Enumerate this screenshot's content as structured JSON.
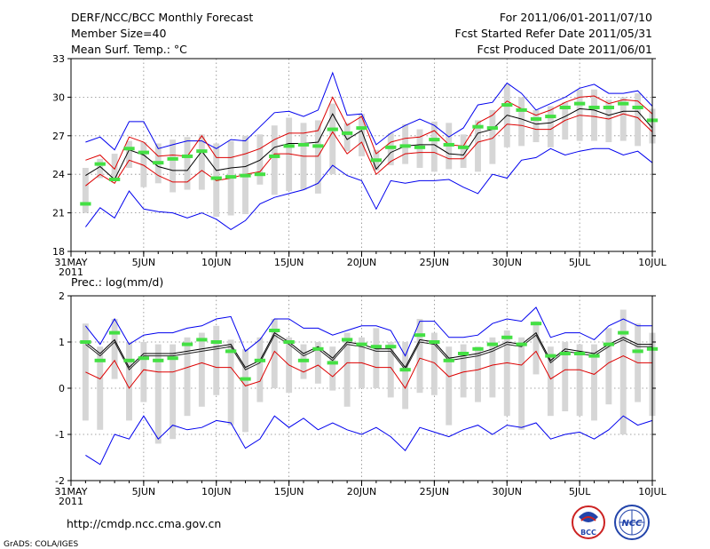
{
  "header": {
    "title": "DERF/NCC/BCC Monthly Forecast",
    "member_size": "Member Size=40",
    "variable": "Mean Surf. Temp.: °C",
    "period": "For 2011/06/01-2011/07/10",
    "start_date": "Fcst Started Refer Date 2011/05/31",
    "produced_date": "Fcst Produced Date 2011/06/01"
  },
  "footer": {
    "url": "http://cmdp.ncc.cma.gov.cn",
    "grads": "GrADS: COLA/IGES",
    "logo_bcc": "BCC",
    "logo_ncc": "NCC"
  },
  "colors": {
    "box": "#d6d6d6",
    "median": "#44e044",
    "mean": "#000000",
    "spread": "#dd0000",
    "minmax": "#0000ee",
    "grid": "#888888"
  },
  "chart_data": [
    {
      "type": "box-line",
      "title": "Mean Surf. Temp.: °C",
      "xlabel": "",
      "ylabel": "°C",
      "ylim": [
        18,
        33
      ],
      "yticks": [
        18,
        21,
        24,
        27,
        30,
        33
      ],
      "xticks": [
        {
          "day": 0,
          "label": "31MAY",
          "sub": "2011"
        },
        {
          "day": 5,
          "label": "5JUN"
        },
        {
          "day": 10,
          "label": "10JUN"
        },
        {
          "day": 15,
          "label": "15JUN"
        },
        {
          "day": 20,
          "label": "20JUN"
        },
        {
          "day": 25,
          "label": "25JUN"
        },
        {
          "day": 30,
          "label": "30JUN"
        },
        {
          "day": 35,
          "label": "5JUL"
        },
        {
          "day": 40,
          "label": "10JUL"
        }
      ],
      "x_range": [
        0,
        40
      ],
      "days": [
        1,
        2,
        3,
        4,
        5,
        6,
        7,
        8,
        9,
        10,
        11,
        12,
        13,
        14,
        15,
        16,
        17,
        18,
        19,
        20,
        21,
        22,
        23,
        24,
        25,
        26,
        27,
        28,
        29,
        30,
        31,
        32,
        33,
        34,
        35,
        36,
        37,
        38,
        39,
        40
      ],
      "box_low": [
        21.0,
        23.7,
        23.6,
        24.5,
        23.0,
        23.3,
        22.6,
        22.8,
        22.8,
        20.7,
        20.8,
        20.9,
        23.2,
        22.4,
        22.7,
        22.8,
        22.5,
        24.0,
        25.8,
        25.4,
        24.3,
        24.7,
        24.8,
        24.5,
        24.2,
        24.4,
        24.5,
        24.2,
        24.8,
        26.1,
        26.2,
        26.5,
        26.1,
        26.7,
        26.6,
        26.6,
        26.5,
        26.6,
        26.2,
        26.4
      ],
      "box_high": [
        24.5,
        25.2,
        25.6,
        26.6,
        26.5,
        26.4,
        26.7,
        26.9,
        27.1,
        26.4,
        26.6,
        27.0,
        27.1,
        27.8,
        28.4,
        28.0,
        28.2,
        29.5,
        28.0,
        28.7,
        25.9,
        27.2,
        27.9,
        27.5,
        28.1,
        28.0,
        27.1,
        28.2,
        29.0,
        31.0,
        30.0,
        29.0,
        29.3,
        29.6,
        30.6,
        30.6,
        29.8,
        30.0,
        30.3,
        29.1
      ],
      "median": [
        21.7,
        24.8,
        23.6,
        26.0,
        25.7,
        24.9,
        25.2,
        25.4,
        25.8,
        23.7,
        23.8,
        23.9,
        24.0,
        25.4,
        26.2,
        26.3,
        26.2,
        27.5,
        27.2,
        27.6,
        25.1,
        26.1,
        26.2,
        26.1,
        26.7,
        26.3,
        26.1,
        27.7,
        27.6,
        29.4,
        29.0,
        28.3,
        28.5,
        29.2,
        29.5,
        29.2,
        29.2,
        29.5,
        29.2,
        28.2
      ],
      "series": [
        {
          "name": "Max",
          "color": "#0000ee",
          "values": [
            26.5,
            26.9,
            25.9,
            28.1,
            28.1,
            26.0,
            26.3,
            26.6,
            26.6,
            26.0,
            26.7,
            26.6,
            27.7,
            28.8,
            28.9,
            28.5,
            29.0,
            31.9,
            28.6,
            28.7,
            26.3,
            27.2,
            27.8,
            28.3,
            27.8,
            26.9,
            27.6,
            29.4,
            29.6,
            31.1,
            30.3,
            29.0,
            29.5,
            30.0,
            30.7,
            31.0,
            30.3,
            30.3,
            30.5,
            29.3
          ]
        },
        {
          "name": "Mean+SD",
          "color": "#dd0000",
          "values": [
            25.1,
            25.5,
            24.4,
            26.9,
            26.5,
            25.4,
            25.5,
            25.4,
            27.0,
            25.3,
            25.3,
            25.6,
            26.0,
            26.7,
            27.2,
            27.2,
            27.4,
            30.0,
            27.8,
            28.5,
            25.6,
            26.5,
            26.8,
            26.9,
            27.4,
            26.3,
            26.2,
            28.0,
            28.6,
            29.7,
            29.1,
            28.6,
            29.0,
            29.6,
            30.0,
            30.1,
            29.5,
            29.8,
            29.7,
            28.7
          ]
        },
        {
          "name": "Mean",
          "color": "#000000",
          "values": [
            23.9,
            24.6,
            23.6,
            25.9,
            25.5,
            24.6,
            24.3,
            24.3,
            25.8,
            24.3,
            24.5,
            24.6,
            25.1,
            26.1,
            26.4,
            26.4,
            26.5,
            28.7,
            26.7,
            27.4,
            24.4,
            25.7,
            26.2,
            26.3,
            26.3,
            25.6,
            25.5,
            27.2,
            27.5,
            28.6,
            28.3,
            27.9,
            28.0,
            28.5,
            29.1,
            29.0,
            28.6,
            28.9,
            28.9,
            27.6
          ]
        },
        {
          "name": "Mean-SD",
          "color": "#dd0000",
          "values": [
            23.1,
            24.0,
            23.3,
            25.1,
            24.7,
            23.9,
            23.4,
            23.4,
            24.3,
            23.5,
            23.7,
            24.0,
            24.2,
            25.6,
            25.6,
            25.4,
            25.4,
            27.3,
            25.6,
            26.5,
            24.0,
            25.0,
            25.6,
            25.7,
            25.7,
            25.2,
            25.2,
            26.5,
            26.8,
            27.9,
            27.8,
            27.5,
            27.5,
            28.2,
            28.6,
            28.5,
            28.3,
            28.7,
            28.4,
            27.3
          ]
        },
        {
          "name": "Min",
          "color": "#0000ee",
          "values": [
            19.9,
            21.4,
            20.6,
            22.7,
            21.3,
            21.1,
            21.0,
            20.6,
            21.0,
            20.5,
            19.7,
            20.4,
            21.7,
            22.2,
            22.5,
            22.8,
            23.3,
            24.7,
            23.9,
            23.5,
            21.3,
            23.5,
            23.3,
            23.5,
            23.5,
            23.6,
            23.0,
            22.5,
            24.0,
            23.7,
            25.1,
            25.3,
            26.0,
            25.5,
            25.8,
            26.0,
            26.0,
            25.5,
            25.8,
            24.9
          ]
        }
      ]
    },
    {
      "type": "box-line",
      "title": "Prec.: log(mm/d)",
      "xlabel": "",
      "ylabel": "log(mm/d)",
      "ylim": [
        -2,
        2
      ],
      "yticks": [
        -2,
        -1,
        0,
        1,
        2
      ],
      "xticks": [
        {
          "day": 0,
          "label": "31MAY",
          "sub": "2011"
        },
        {
          "day": 5,
          "label": "5JUN"
        },
        {
          "day": 10,
          "label": "10JUN"
        },
        {
          "day": 15,
          "label": "15JUN"
        },
        {
          "day": 20,
          "label": "20JUN"
        },
        {
          "day": 25,
          "label": "25JUN"
        },
        {
          "day": 30,
          "label": "30JUN"
        },
        {
          "day": 35,
          "label": "5JUL"
        },
        {
          "day": 40,
          "label": "10JUL"
        }
      ],
      "x_range": [
        0,
        40
      ],
      "days": [
        1,
        2,
        3,
        4,
        5,
        6,
        7,
        8,
        9,
        10,
        11,
        12,
        13,
        14,
        15,
        16,
        17,
        18,
        19,
        20,
        21,
        22,
        23,
        24,
        25,
        26,
        27,
        28,
        29,
        30,
        31,
        32,
        33,
        34,
        35,
        36,
        37,
        38,
        39,
        40
      ],
      "box_low": [
        -0.7,
        -0.9,
        0.2,
        -0.7,
        -0.3,
        -1.2,
        -1.1,
        -0.6,
        -0.4,
        -0.15,
        -0.8,
        -0.95,
        -0.3,
        0.0,
        -0.1,
        0.2,
        0.1,
        -0.05,
        -0.4,
        0.0,
        0.0,
        -0.2,
        -0.45,
        -0.1,
        -0.15,
        -0.8,
        -0.2,
        -0.3,
        -0.2,
        -0.6,
        -0.9,
        0.3,
        -0.6,
        -0.5,
        -0.6,
        -0.7,
        -0.35,
        -1.0,
        -0.3,
        -0.6
      ],
      "box_high": [
        1.4,
        0.9,
        1.5,
        1.0,
        1.0,
        0.95,
        0.95,
        1.1,
        1.2,
        1.35,
        1.05,
        0.85,
        1.1,
        1.5,
        1.1,
        0.95,
        1.0,
        0.9,
        1.2,
        1.1,
        1.3,
        1.0,
        1.0,
        1.5,
        1.2,
        0.9,
        0.95,
        0.9,
        1.1,
        1.25,
        1.1,
        1.45,
        0.9,
        1.0,
        0.95,
        0.95,
        1.3,
        1.7,
        1.4,
        1.2
      ],
      "median": [
        1.0,
        0.6,
        1.2,
        0.6,
        0.65,
        0.6,
        0.65,
        0.95,
        1.05,
        1.0,
        0.8,
        0.2,
        0.6,
        1.25,
        1.0,
        0.6,
        0.85,
        0.55,
        1.05,
        0.95,
        0.9,
        0.9,
        0.4,
        1.15,
        1.0,
        0.6,
        0.75,
        0.85,
        0.95,
        1.1,
        0.95,
        1.4,
        0.7,
        0.75,
        0.75,
        0.7,
        0.95,
        1.2,
        0.8,
        0.85
      ],
      "series": [
        {
          "name": "Max",
          "color": "#0000ee",
          "values": [
            1.35,
            0.95,
            1.5,
            0.95,
            1.15,
            1.2,
            1.2,
            1.3,
            1.35,
            1.5,
            1.55,
            0.8,
            1.05,
            1.5,
            1.5,
            1.3,
            1.3,
            1.15,
            1.25,
            1.35,
            1.35,
            1.25,
            0.7,
            1.45,
            1.45,
            1.1,
            1.1,
            1.15,
            1.4,
            1.5,
            1.45,
            1.75,
            1.1,
            1.2,
            1.2,
            1.05,
            1.35,
            1.5,
            1.35,
            1.35
          ]
        },
        {
          "name": "Mean+SD",
          "color": "#000000",
          "values": [
            1.0,
            0.75,
            1.05,
            0.45,
            0.75,
            0.75,
            0.75,
            0.8,
            0.85,
            0.9,
            0.95,
            0.45,
            0.6,
            1.2,
            1.0,
            0.75,
            0.9,
            0.65,
            1.0,
            0.95,
            0.85,
            0.85,
            0.45,
            1.05,
            1.0,
            0.65,
            0.7,
            0.75,
            0.85,
            1.0,
            0.95,
            1.2,
            0.6,
            0.85,
            0.8,
            0.75,
            0.95,
            1.1,
            0.95,
            0.95
          ]
        },
        {
          "name": "Mean",
          "color": "#222222",
          "values": [
            0.95,
            0.7,
            1.0,
            0.4,
            0.7,
            0.7,
            0.7,
            0.75,
            0.8,
            0.85,
            0.9,
            0.4,
            0.55,
            1.15,
            0.95,
            0.7,
            0.85,
            0.6,
            0.95,
            0.9,
            0.8,
            0.8,
            0.4,
            1.0,
            0.95,
            0.6,
            0.65,
            0.7,
            0.8,
            0.95,
            0.9,
            1.15,
            0.55,
            0.8,
            0.75,
            0.7,
            0.9,
            1.05,
            0.9,
            0.9
          ]
        },
        {
          "name": "Mean-SD",
          "color": "#dd0000",
          "values": [
            0.35,
            0.2,
            0.6,
            0.0,
            0.4,
            0.35,
            0.35,
            0.45,
            0.55,
            0.45,
            0.45,
            0.05,
            0.15,
            0.8,
            0.5,
            0.35,
            0.5,
            0.25,
            0.55,
            0.55,
            0.45,
            0.45,
            0.0,
            0.65,
            0.55,
            0.25,
            0.35,
            0.4,
            0.5,
            0.55,
            0.5,
            0.8,
            0.2,
            0.4,
            0.4,
            0.3,
            0.55,
            0.7,
            0.55,
            0.55
          ]
        },
        {
          "name": "Min",
          "color": "#0000ee",
          "values": [
            -1.45,
            -1.65,
            -1.0,
            -1.1,
            -0.6,
            -1.1,
            -0.8,
            -0.9,
            -0.85,
            -0.7,
            -0.75,
            -1.3,
            -1.1,
            -0.6,
            -0.85,
            -0.65,
            -0.9,
            -0.75,
            -0.9,
            -1.0,
            -0.85,
            -1.05,
            -1.35,
            -0.85,
            -0.95,
            -1.05,
            -0.9,
            -0.8,
            -1.0,
            -0.8,
            -0.85,
            -0.75,
            -1.1,
            -1.0,
            -0.95,
            -1.1,
            -0.9,
            -0.6,
            -0.8,
            -0.7
          ]
        }
      ]
    }
  ]
}
